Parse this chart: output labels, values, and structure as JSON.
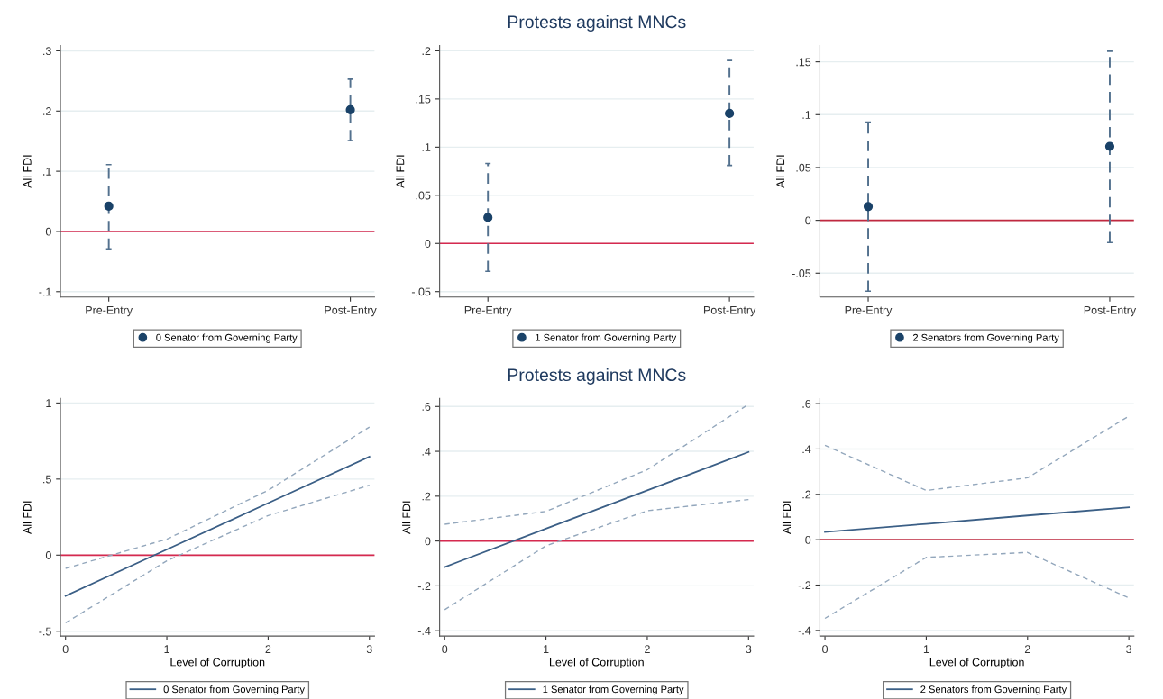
{
  "chart_data": [
    {
      "type": "scatter",
      "categories": [
        "Pre-Entry",
        "Post-Entry"
      ],
      "ylabel": "All FDI",
      "ylim": [
        -0.109,
        0.309
      ],
      "yticks": [
        {
          "value": -0.1,
          "label": "-.1"
        },
        0,
        {
          "value": 0.1,
          "label": ".1"
        },
        {
          "value": 0.2,
          "label": ".2"
        },
        {
          "value": 0.3,
          "label": ".3"
        }
      ],
      "grid": "y",
      "legend": "bottom",
      "marker": "circle",
      "line_style": "dashed",
      "series": [
        {
          "name": "0 Senator from Governing Party",
          "color": "#1a4268",
          "values": [
            0.042,
            0.202
          ],
          "errors": [
            [
              -0.029,
              0.111
            ],
            [
              0.151,
              0.253
            ]
          ]
        }
      ],
      "ref_lines": [
        {
          "axis": "y",
          "value": 0,
          "color": "#d6294f"
        }
      ]
    },
    {
      "type": "scatter",
      "title": "Protests against MNCs",
      "categories": [
        "Pre-Entry",
        "Post-Entry"
      ],
      "ylabel": "All FDI",
      "ylim": [
        -0.0557,
        0.2056
      ],
      "yticks": [
        {
          "value": -0.05,
          "label": "-.05"
        },
        0,
        {
          "value": 0.05,
          "label": ".05"
        },
        {
          "value": 0.1,
          "label": ".1"
        },
        {
          "value": 0.15,
          "label": ".15"
        },
        {
          "value": 0.2,
          "label": ".2"
        }
      ],
      "grid": "y",
      "legend": "bottom",
      "marker": "circle",
      "line_style": "dashed",
      "series": [
        {
          "name": "1 Senator from Governing Party",
          "color": "#1a4268",
          "values": [
            0.027,
            0.135
          ],
          "errors": [
            [
              -0.029,
              0.083
            ],
            [
              0.081,
              0.19
            ]
          ]
        }
      ],
      "ref_lines": [
        {
          "axis": "y",
          "value": 0,
          "color": "#d6294f"
        }
      ]
    },
    {
      "type": "scatter",
      "categories": [
        "Pre-Entry",
        "Post-Entry"
      ],
      "ylabel": "All FDI",
      "ylim": [
        -0.0726,
        0.1655
      ],
      "yticks": [
        {
          "value": -0.05,
          "label": "-.05"
        },
        0,
        {
          "value": 0.05,
          "label": ".05"
        },
        {
          "value": 0.1,
          "label": ".1"
        },
        {
          "value": 0.15,
          "label": ".15"
        }
      ],
      "grid": "y",
      "legend": "bottom",
      "marker": "circle",
      "line_style": "dashed",
      "series": [
        {
          "name": "2 Senators from Governing Party",
          "color": "#1a4268",
          "values": [
            0.013,
            0.07
          ],
          "errors": [
            [
              -0.067,
              0.093
            ],
            [
              -0.021,
              0.16
            ]
          ]
        }
      ],
      "ref_lines": [
        {
          "axis": "y",
          "value": 0,
          "color": "#c0283f"
        }
      ]
    },
    {
      "type": "line",
      "x": [
        0,
        1,
        2,
        3
      ],
      "xlabel": "Level of Corruption",
      "ylabel": "All FDI",
      "xlim": [
        -0.05,
        3.05
      ],
      "xticks": [
        0,
        1,
        2,
        3
      ],
      "ylim": [
        -0.532,
        1.03
      ],
      "yticks": [
        {
          "value": -0.5,
          "label": "-.5"
        },
        0,
        {
          "value": 0.5,
          "label": ".5"
        },
        1
      ],
      "grid": "y",
      "legend": "bottom",
      "series": [
        {
          "name": "0 Senator from Governing Party",
          "color": "#3b5f86",
          "values": [
            -0.268,
            0.037,
            0.342,
            0.647
          ]
        },
        {
          "color": "#93a7bc",
          "line_style": "dashed",
          "values": [
            -0.445,
            -0.037,
            0.26,
            0.459
          ]
        },
        {
          "color": "#93a7bc",
          "line_style": "dashed",
          "values": [
            -0.087,
            0.105,
            0.426,
            0.842
          ]
        }
      ],
      "ref_lines": [
        {
          "axis": "y",
          "value": 0,
          "color": "#d6294f"
        }
      ]
    },
    {
      "type": "line",
      "title": "Protests against MNCs",
      "x": [
        0,
        1,
        2,
        3
      ],
      "xlabel": "Level of Corruption",
      "ylabel": "All FDI",
      "xlim": [
        -0.05,
        3.05
      ],
      "xticks": [
        0,
        1,
        2,
        3
      ],
      "ylim": [
        -0.424,
        0.636
      ],
      "yticks": [
        {
          "value": -0.4,
          "label": "-.4"
        },
        {
          "value": -0.2,
          "label": "-.2"
        },
        0,
        {
          "value": 0.2,
          "label": ".2"
        },
        {
          "value": 0.4,
          "label": ".4"
        },
        {
          "value": 0.6,
          "label": ".6"
        }
      ],
      "grid": "y",
      "legend": "bottom",
      "series": [
        {
          "name": "1 Senator from Governing Party",
          "color": "#3b5f86",
          "values": [
            -0.116,
            0.055,
            0.226,
            0.397
          ]
        },
        {
          "color": "#93a7bc",
          "line_style": "dashed",
          "values": [
            -0.306,
            -0.021,
            0.135,
            0.185
          ]
        },
        {
          "color": "#93a7bc",
          "line_style": "dashed",
          "values": [
            0.075,
            0.132,
            0.318,
            0.61
          ]
        }
      ],
      "ref_lines": [
        {
          "axis": "y",
          "value": 0,
          "color": "#d6294f"
        }
      ]
    },
    {
      "type": "line",
      "x": [
        0,
        1,
        2,
        3
      ],
      "xlabel": "Level of Corruption",
      "ylabel": "All FDI",
      "xlim": [
        -0.05,
        3.05
      ],
      "xticks": [
        0,
        1,
        2,
        3
      ],
      "ylim": [
        -0.425,
        0.623
      ],
      "yticks": [
        {
          "value": -0.4,
          "label": "-.4"
        },
        {
          "value": -0.2,
          "label": "-.2"
        },
        0,
        {
          "value": 0.2,
          "label": ".2"
        },
        {
          "value": 0.4,
          "label": ".4"
        },
        {
          "value": 0.6,
          "label": ".6"
        }
      ],
      "grid": "y",
      "legend": "bottom",
      "series": [
        {
          "name": "2 Senators from Governing Party",
          "color": "#3b5f86",
          "values": [
            0.034,
            0.07,
            0.107,
            0.143
          ]
        },
        {
          "color": "#93a7bc",
          "line_style": "dashed",
          "values": [
            -0.347,
            -0.078,
            -0.056,
            -0.257
          ]
        },
        {
          "color": "#93a7bc",
          "line_style": "dashed",
          "values": [
            0.416,
            0.217,
            0.273,
            0.545
          ]
        }
      ],
      "ref_lines": [
        {
          "axis": "y",
          "value": 0,
          "color": "#c0283f"
        }
      ]
    }
  ]
}
